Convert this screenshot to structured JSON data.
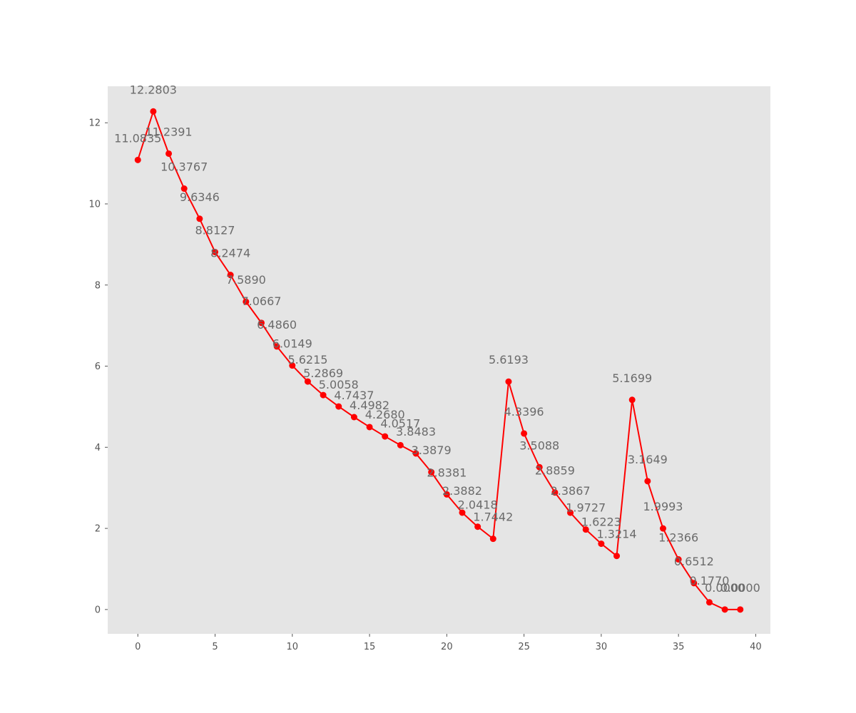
{
  "chart_data": {
    "type": "line",
    "title": "",
    "xlabel": "",
    "ylabel": "",
    "xlim": [
      -1.95,
      40.95
    ],
    "ylim": [
      -0.6,
      12.9
    ],
    "xticks": [
      0,
      5,
      10,
      15,
      20,
      25,
      30,
      35,
      40
    ],
    "yticks": [
      0,
      2,
      4,
      6,
      8,
      10,
      12
    ],
    "grid": false,
    "legend": "none",
    "background": "#e5e5e5",
    "line_color": "#ff0000",
    "marker_color": "#ff0000",
    "label_color": "#6b6b6b",
    "x": [
      0,
      1,
      2,
      3,
      4,
      5,
      6,
      7,
      8,
      9,
      10,
      11,
      12,
      13,
      14,
      15,
      16,
      17,
      18,
      19,
      20,
      21,
      22,
      23,
      24,
      25,
      26,
      27,
      28,
      29,
      30,
      31,
      32,
      33,
      34,
      35,
      36,
      37,
      38,
      39
    ],
    "y": [
      11.0835,
      12.2803,
      11.2391,
      10.3767,
      9.6346,
      8.8127,
      8.2474,
      7.589,
      7.0667,
      6.486,
      6.0149,
      5.6215,
      5.2869,
      5.0058,
      4.7437,
      4.4982,
      4.268,
      4.0517,
      3.8483,
      3.3879,
      2.8381,
      2.3882,
      2.0418,
      1.7442,
      5.6193,
      4.3396,
      3.5088,
      2.8859,
      2.3867,
      1.9727,
      1.6223,
      1.3214,
      5.1699,
      3.1649,
      1.9993,
      1.2366,
      0.6512,
      0.177,
      0.0,
      0.0
    ],
    "data_labels": [
      "11.0835",
      "12.2803",
      "11.2391",
      "10.3767",
      "9.6346",
      "8.8127",
      "8.2474",
      "7.5890",
      "7.0667",
      "6.4860",
      "6.0149",
      "5.6215",
      "5.2869",
      "5.0058",
      "4.7437",
      "4.4982",
      "4.2680",
      "4.0517",
      "3.8483",
      "3.3879",
      "2.8381",
      "2.3882",
      "2.0418",
      "1.7442",
      "5.6193",
      "4.3396",
      "3.5088",
      "2.8859",
      "2.3867",
      "1.9727",
      "1.6223",
      "1.3214",
      "5.1699",
      "3.1649",
      "1.9993",
      "1.2366",
      "0.6512",
      "0.1770",
      "0.0000",
      "0.0000"
    ]
  }
}
